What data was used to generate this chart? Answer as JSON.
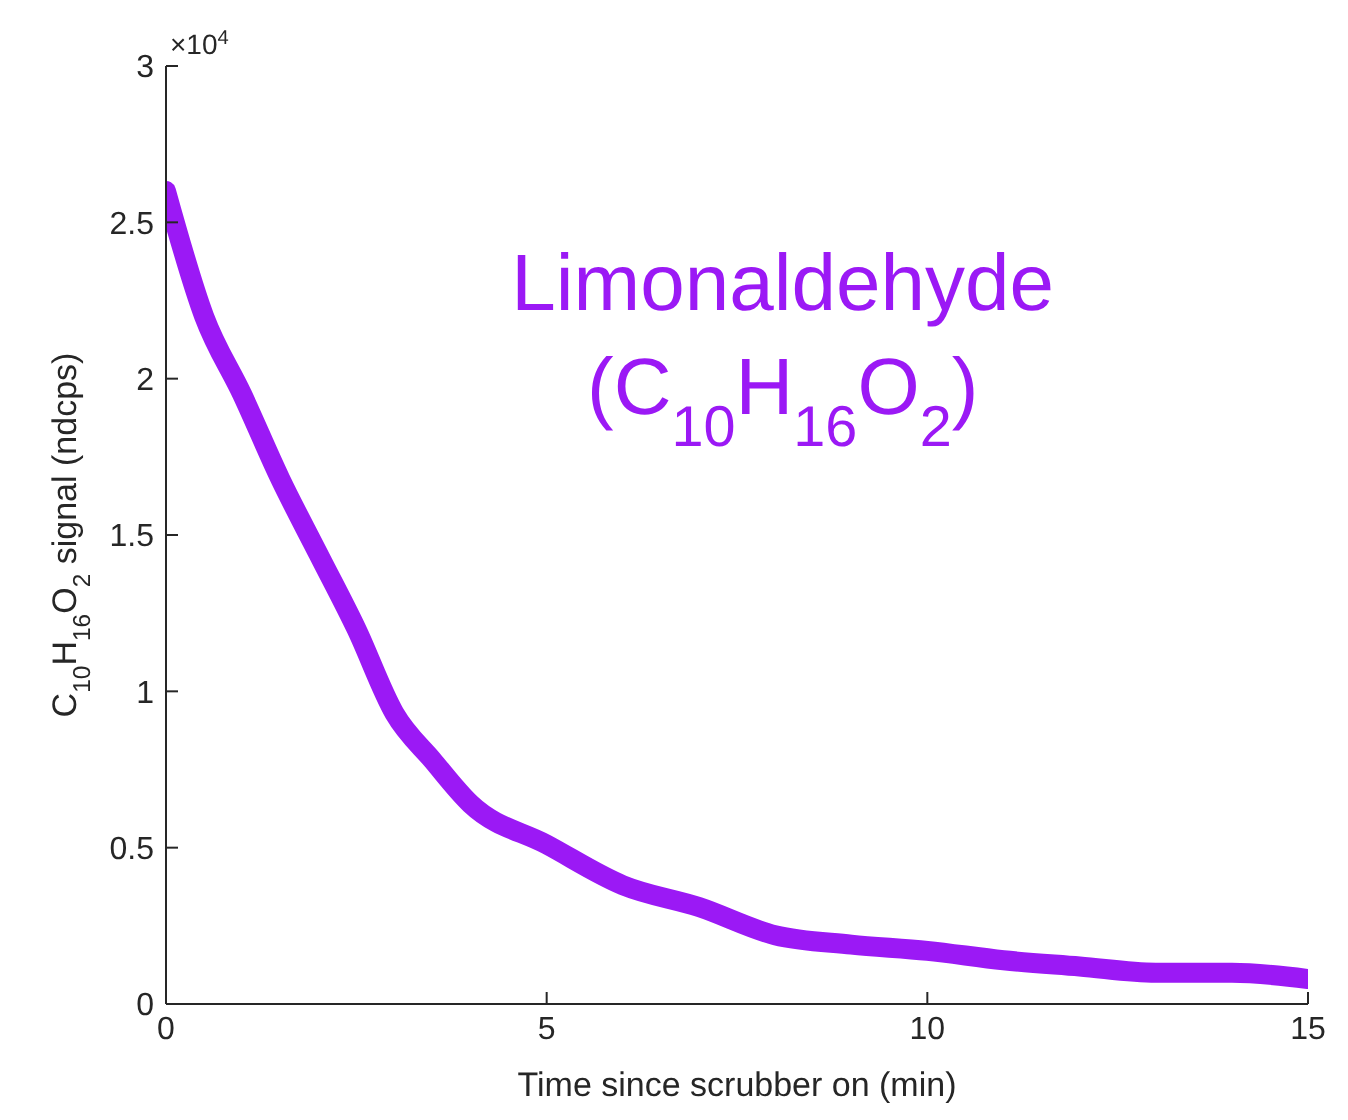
{
  "chart_data": {
    "type": "line",
    "xlabel": "Time since scrubber on (min)",
    "ylabel": "C$_{10}$H$_{16}$O$_{2}$ signal (ndcps)",
    "annotations": [
      "×10$^{4}$",
      "Limonaldehyde\n(C$_{10}$H$_{16}$O$_{2}$)"
    ],
    "x": [
      0,
      0.5,
      1,
      1.5,
      2,
      2.5,
      3,
      3.5,
      4,
      5,
      6,
      7,
      8,
      9,
      10,
      11,
      12,
      13,
      14,
      15
    ],
    "series": [
      {
        "color": "#9b19f5",
        "values": [
          2.6,
          2.2,
          1.95,
          1.68,
          1.44,
          1.2,
          0.93,
          0.78,
          0.64,
          0.51,
          0.38,
          0.31,
          0.22,
          0.19,
          0.17,
          0.14,
          0.12,
          0.1,
          0.1,
          0.08
        ]
      }
    ],
    "xlim": [
      0,
      15
    ],
    "xticks": [
      0,
      5,
      10,
      15
    ],
    "ylim": [
      0,
      3
    ],
    "yticks": [
      0,
      0.5,
      1,
      1.5,
      2,
      2.5,
      3
    ],
    "grid": false,
    "legend": false,
    "marker": "none",
    "line_style": "solid"
  }
}
